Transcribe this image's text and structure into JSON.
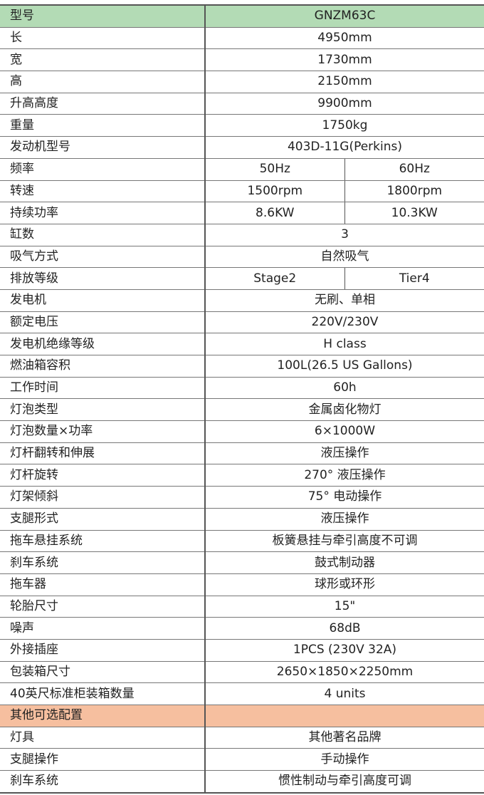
{
  "header": {
    "label": "型号",
    "value": "GNZM63C"
  },
  "colors": {
    "header_bg": "#b3dbb5",
    "section_bg": "#f6bf9f"
  },
  "rows": [
    {
      "label": "长",
      "value": "4950mm"
    },
    {
      "label": "宽",
      "value": "1730mm"
    },
    {
      "label": "高",
      "value": "2150mm"
    },
    {
      "label": "升高高度",
      "value": "9900mm"
    },
    {
      "label": "重量",
      "value": "1750kg"
    },
    {
      "label": "发动机型号",
      "value": "403D-11G(Perkins)"
    },
    {
      "label": "频率",
      "values": [
        "50Hz",
        "60Hz"
      ]
    },
    {
      "label": "转速",
      "values": [
        "1500rpm",
        "1800rpm"
      ]
    },
    {
      "label": "持续功率",
      "values": [
        "8.6KW",
        "10.3KW"
      ]
    },
    {
      "label": "缸数",
      "value": "3"
    },
    {
      "label": "吸气方式",
      "value": "自然吸气"
    },
    {
      "label": "排放等级",
      "values": [
        "Stage2",
        "Tier4"
      ]
    },
    {
      "label": "发电机",
      "value": "无刷、单相"
    },
    {
      "label": "额定电压",
      "value": "220V/230V"
    },
    {
      "label": "发电机绝缘等级",
      "value": "H class"
    },
    {
      "label": "燃油箱容积",
      "value": "100L(26.5 US Gallons)"
    },
    {
      "label": "工作时间",
      "value": "60h"
    },
    {
      "label": "灯泡类型",
      "value": "金属卤化物灯"
    },
    {
      "label": "灯泡数量×功率",
      "value": "6×1000W"
    },
    {
      "label": "灯杆翻转和伸展",
      "value": "液压操作"
    },
    {
      "label": "灯杆旋转",
      "value": "270° 液压操作"
    },
    {
      "label": "灯架倾斜",
      "value": "75° 电动操作"
    },
    {
      "label": "支腿形式",
      "value": "液压操作"
    },
    {
      "label": "拖车悬挂系统",
      "value": "板簧悬挂与牵引高度不可调"
    },
    {
      "label": "刹车系统",
      "value": "鼓式制动器"
    },
    {
      "label": "拖车器",
      "value": "球形或环形"
    },
    {
      "label": "轮胎尺寸",
      "value": "15\""
    },
    {
      "label": "噪声",
      "value": "68dB"
    },
    {
      "label": "外接插座",
      "value": "1PCS (230V 32A)"
    },
    {
      "label": "包装箱尺寸",
      "value": "2650×1850×2250mm"
    },
    {
      "label": "40英尺标准柜装箱数量",
      "value": "4 units"
    }
  ],
  "section": {
    "label": "其他可选配置"
  },
  "optional_rows": [
    {
      "label": "灯具",
      "value": "其他著名品牌"
    },
    {
      "label": "支腿操作",
      "value": "手动操作"
    },
    {
      "label": "刹车系统",
      "value": "惯性制动与牵引高度可调"
    }
  ]
}
